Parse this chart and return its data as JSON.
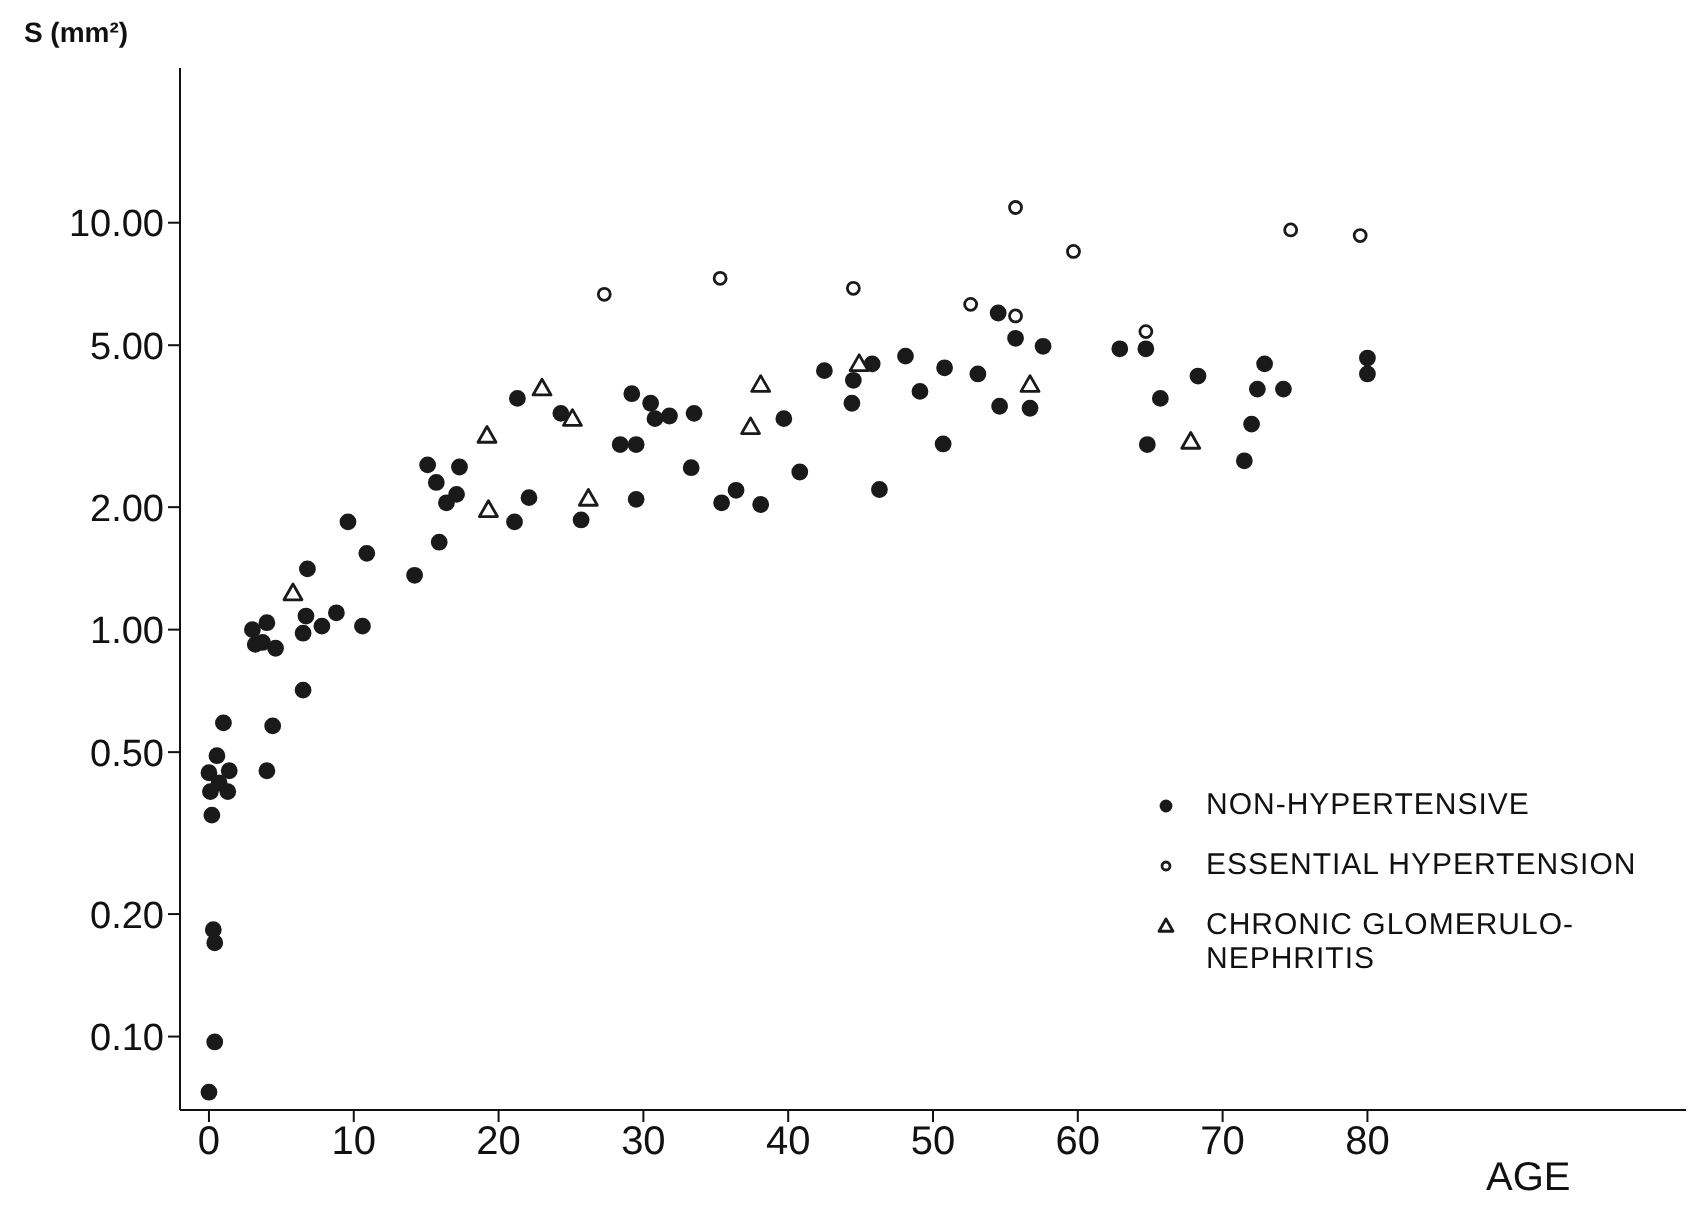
{
  "chart_data": {
    "type": "scatter",
    "xlabel": "AGE",
    "ylabel": "S (mm²)",
    "log": "y",
    "grid": false,
    "legend": "bottom right",
    "xlim": [
      -2,
      102
    ],
    "xticks": [
      0,
      10,
      20,
      30,
      40,
      50,
      60,
      70,
      80
    ],
    "ylim": [
      0.066,
      24
    ],
    "yticks": [
      {
        "value": 0.1,
        "label": "0.10"
      },
      {
        "value": 0.2,
        "label": "0.20"
      },
      {
        "value": 0.5,
        "label": "0.50"
      },
      {
        "value": 1,
        "label": "1.00"
      },
      {
        "value": 2,
        "label": "2.00"
      },
      {
        "value": 5,
        "label": "5.00"
      },
      {
        "value": 10,
        "label": "10.00"
      }
    ],
    "series": [
      {
        "name": "NON-HYPERTENSIVE",
        "color": "#1a1a1a",
        "marker": "circle",
        "x": [
          1.0,
          0.55,
          0,
          1.4,
          0.1,
          1.3,
          0.7,
          0.2,
          0.3,
          0.4,
          0.4,
          0,
          4.0,
          4.4,
          6.5,
          3.0,
          4.0,
          3.2,
          3.7,
          4.6,
          6.5,
          6.7,
          7.8,
          8.8,
          10.6,
          6.8,
          9.6,
          10.9,
          14.2,
          15.9,
          15.1,
          15.7,
          16.4,
          17.1,
          17.3,
          21.1,
          21.3,
          22.1,
          24.3,
          25.7,
          29.2,
          28.4,
          29.5,
          29.5,
          30.5,
          30.8,
          31.8,
          33.5,
          33.3,
          35.4,
          36.4,
          38.1,
          39.7,
          40.8,
          42.5,
          44.5,
          45.8,
          44.4,
          46.3,
          48.1,
          49.1,
          50.8,
          50.7,
          53.1,
          54.6,
          56.7,
          54.5,
          55.7,
          57.6,
          62.9,
          64.7,
          68.3,
          65.7,
          72.9,
          72.4,
          74.2,
          72.0,
          64.8,
          71.5,
          80.0,
          80.0
        ],
        "values": [
          0.59,
          0.49,
          0.445,
          0.45,
          0.4,
          0.4,
          0.42,
          0.35,
          0.183,
          0.17,
          0.097,
          0.073,
          0.45,
          0.58,
          0.71,
          1.0,
          1.04,
          0.92,
          0.93,
          0.9,
          0.98,
          1.08,
          1.02,
          1.1,
          1.02,
          1.41,
          1.84,
          1.54,
          1.36,
          1.64,
          2.54,
          2.3,
          2.05,
          2.15,
          2.51,
          1.84,
          3.7,
          2.11,
          3.4,
          1.86,
          3.8,
          2.85,
          2.85,
          2.09,
          3.6,
          3.3,
          3.35,
          3.4,
          2.5,
          2.05,
          2.2,
          2.03,
          3.3,
          2.44,
          4.33,
          4.1,
          4.5,
          3.6,
          2.21,
          4.7,
          3.85,
          4.4,
          2.86,
          4.25,
          3.54,
          3.5,
          6.0,
          5.2,
          4.97,
          4.9,
          4.9,
          4.2,
          3.7,
          4.5,
          3.9,
          3.9,
          3.2,
          2.85,
          2.6,
          4.65,
          4.25
        ]
      },
      {
        "name": "ESSENTIAL HYPERTENSION",
        "color": "#1a1a1a",
        "marker": "circle",
        "x": [
          27.3,
          35.3,
          44.5,
          52.6,
          55.7,
          59.7,
          55.7,
          74.7,
          79.5,
          64.7
        ],
        "values": [
          6.67,
          7.3,
          6.9,
          6.3,
          10.9,
          8.5,
          5.9,
          9.6,
          9.3,
          5.4
        ]
      },
      {
        "name": "CHRONIC GLOMERULO-NEPHRITIS",
        "color": "#1a1a1a",
        "marker": "triangle",
        "x": [
          5.8,
          19.2,
          19.3,
          23.0,
          25.1,
          26.2,
          38.1,
          37.4,
          44.9,
          56.7,
          67.8
        ],
        "values": [
          1.23,
          3.0,
          1.97,
          3.92,
          3.3,
          2.1,
          4.0,
          3.15,
          4.5,
          4.0,
          2.9
        ]
      }
    ]
  }
}
